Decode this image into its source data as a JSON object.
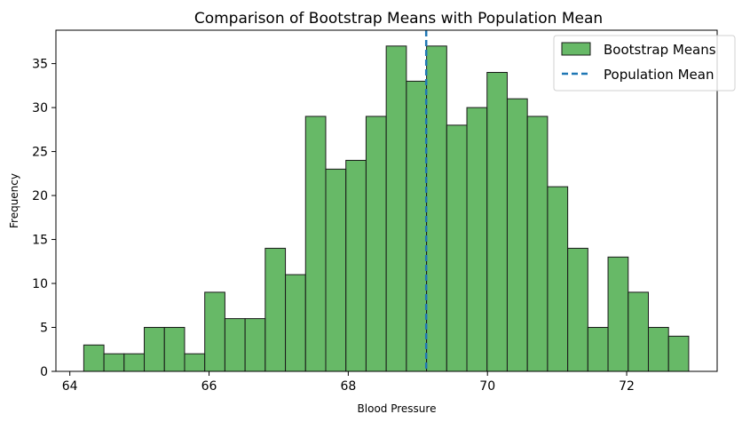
{
  "chart_data": {
    "type": "bar",
    "title": "Comparison of Bootstrap Means with Population Mean",
    "xlabel": "Blood Pressure",
    "ylabel": "Frequency",
    "xlim": [
      63.8,
      73.3
    ],
    "ylim": [
      0,
      38.8
    ],
    "xticks": [
      64,
      66,
      68,
      70,
      72
    ],
    "yticks": [
      0,
      5,
      10,
      15,
      20,
      25,
      30,
      35
    ],
    "grid": false,
    "legend_position": "top-right",
    "bin_start": 64.2,
    "bin_width": 0.2897,
    "series": [
      {
        "name": "Bootstrap Means",
        "color": "#4cad4c",
        "values": [
          3,
          2,
          2,
          5,
          5,
          2,
          9,
          6,
          6,
          14,
          11,
          29,
          23,
          24,
          29,
          37,
          33,
          37,
          28,
          30,
          34,
          31,
          29,
          21,
          14,
          5,
          13,
          9,
          5,
          4
        ]
      }
    ],
    "reference_line": {
      "name": "Population Mean",
      "x": 69.12,
      "color": "#1f77b4",
      "style": "dashed"
    }
  }
}
